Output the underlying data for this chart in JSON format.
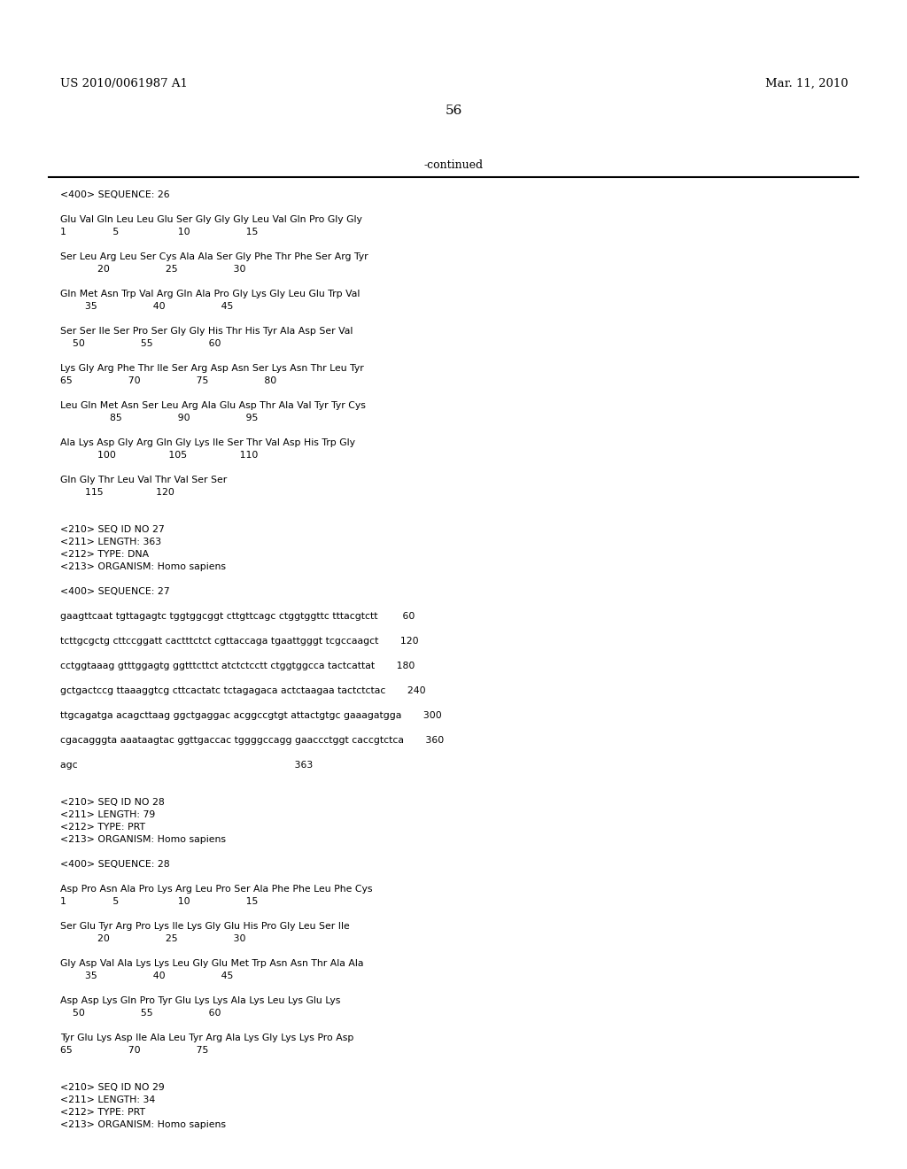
{
  "header_left": "US 2010/0061987 A1",
  "header_right": "Mar. 11, 2010",
  "page_number": "56",
  "continued_text": "-continued",
  "background_color": "#ffffff",
  "text_color": "#000000",
  "lines": [
    {
      "text": "<400> SEQUENCE: 26",
      "blank_after": false
    },
    {
      "text": "",
      "blank_after": false
    },
    {
      "text": "Glu Val Gln Leu Leu Glu Ser Gly Gly Gly Leu Val Gln Pro Gly Gly",
      "blank_after": false
    },
    {
      "text": "1               5                   10                  15",
      "blank_after": false
    },
    {
      "text": "",
      "blank_after": false
    },
    {
      "text": "Ser Leu Arg Leu Ser Cys Ala Ala Ser Gly Phe Thr Phe Ser Arg Tyr",
      "blank_after": false
    },
    {
      "text": "            20                  25                  30",
      "blank_after": false
    },
    {
      "text": "",
      "blank_after": false
    },
    {
      "text": "Gln Met Asn Trp Val Arg Gln Ala Pro Gly Lys Gly Leu Glu Trp Val",
      "blank_after": false
    },
    {
      "text": "        35                  40                  45",
      "blank_after": false
    },
    {
      "text": "",
      "blank_after": false
    },
    {
      "text": "Ser Ser Ile Ser Pro Ser Gly Gly His Thr His Tyr Ala Asp Ser Val",
      "blank_after": false
    },
    {
      "text": "    50                  55                  60",
      "blank_after": false
    },
    {
      "text": "",
      "blank_after": false
    },
    {
      "text": "Lys Gly Arg Phe Thr Ile Ser Arg Asp Asn Ser Lys Asn Thr Leu Tyr",
      "blank_after": false
    },
    {
      "text": "65                  70                  75                  80",
      "blank_after": false
    },
    {
      "text": "",
      "blank_after": false
    },
    {
      "text": "Leu Gln Met Asn Ser Leu Arg Ala Glu Asp Thr Ala Val Tyr Tyr Cys",
      "blank_after": false
    },
    {
      "text": "                85                  90                  95",
      "blank_after": false
    },
    {
      "text": "",
      "blank_after": false
    },
    {
      "text": "Ala Lys Asp Gly Arg Gln Gly Lys Ile Ser Thr Val Asp His Trp Gly",
      "blank_after": false
    },
    {
      "text": "            100                 105                 110",
      "blank_after": false
    },
    {
      "text": "",
      "blank_after": false
    },
    {
      "text": "Gln Gly Thr Leu Val Thr Val Ser Ser",
      "blank_after": false
    },
    {
      "text": "        115                 120",
      "blank_after": false
    },
    {
      "text": "",
      "blank_after": false
    },
    {
      "text": "",
      "blank_after": false
    },
    {
      "text": "<210> SEQ ID NO 27",
      "blank_after": false
    },
    {
      "text": "<211> LENGTH: 363",
      "blank_after": false
    },
    {
      "text": "<212> TYPE: DNA",
      "blank_after": false
    },
    {
      "text": "<213> ORGANISM: Homo sapiens",
      "blank_after": false
    },
    {
      "text": "",
      "blank_after": false
    },
    {
      "text": "<400> SEQUENCE: 27",
      "blank_after": false
    },
    {
      "text": "",
      "blank_after": false
    },
    {
      "text": "gaagttcaat tgttagagtc tggtggcggt cttgttcagc ctggtggttc tttacgtctt        60",
      "blank_after": false
    },
    {
      "text": "",
      "blank_after": false
    },
    {
      "text": "tcttgcgctg cttccggatt cactttctct cgttaccaga tgaattgggt tcgccaagct       120",
      "blank_after": false
    },
    {
      "text": "",
      "blank_after": false
    },
    {
      "text": "cctggtaaag gtttggagtg ggtttcttct atctctcctt ctggtggcca tactcattat       180",
      "blank_after": false
    },
    {
      "text": "",
      "blank_after": false
    },
    {
      "text": "gctgactccg ttaaaggtcg cttcactatc tctagagaca actctaagaa tactctctac       240",
      "blank_after": false
    },
    {
      "text": "",
      "blank_after": false
    },
    {
      "text": "ttgcagatga acagcttaag ggctgaggac acggccgtgt attactgtgc gaaagatgga       300",
      "blank_after": false
    },
    {
      "text": "",
      "blank_after": false
    },
    {
      "text": "cgacagggta aaataagtac ggttgaccac tggggccagg gaaccctggt caccgtctca       360",
      "blank_after": false
    },
    {
      "text": "",
      "blank_after": false
    },
    {
      "text": "agc                                                                      363",
      "blank_after": false
    },
    {
      "text": "",
      "blank_after": false
    },
    {
      "text": "",
      "blank_after": false
    },
    {
      "text": "<210> SEQ ID NO 28",
      "blank_after": false
    },
    {
      "text": "<211> LENGTH: 79",
      "blank_after": false
    },
    {
      "text": "<212> TYPE: PRT",
      "blank_after": false
    },
    {
      "text": "<213> ORGANISM: Homo sapiens",
      "blank_after": false
    },
    {
      "text": "",
      "blank_after": false
    },
    {
      "text": "<400> SEQUENCE: 28",
      "blank_after": false
    },
    {
      "text": "",
      "blank_after": false
    },
    {
      "text": "Asp Pro Asn Ala Pro Lys Arg Leu Pro Ser Ala Phe Phe Leu Phe Cys",
      "blank_after": false
    },
    {
      "text": "1               5                   10                  15",
      "blank_after": false
    },
    {
      "text": "",
      "blank_after": false
    },
    {
      "text": "Ser Glu Tyr Arg Pro Lys Ile Lys Gly Glu His Pro Gly Leu Ser Ile",
      "blank_after": false
    },
    {
      "text": "            20                  25                  30",
      "blank_after": false
    },
    {
      "text": "",
      "blank_after": false
    },
    {
      "text": "Gly Asp Val Ala Lys Lys Leu Gly Glu Met Trp Asn Asn Thr Ala Ala",
      "blank_after": false
    },
    {
      "text": "        35                  40                  45",
      "blank_after": false
    },
    {
      "text": "",
      "blank_after": false
    },
    {
      "text": "Asp Asp Lys Gln Pro Tyr Glu Lys Lys Ala Lys Leu Lys Glu Lys",
      "blank_after": false
    },
    {
      "text": "    50                  55                  60",
      "blank_after": false
    },
    {
      "text": "",
      "blank_after": false
    },
    {
      "text": "Tyr Glu Lys Asp Ile Ala Leu Tyr Arg Ala Lys Gly Lys Lys Pro Asp",
      "blank_after": false
    },
    {
      "text": "65                  70                  75",
      "blank_after": false
    },
    {
      "text": "",
      "blank_after": false
    },
    {
      "text": "",
      "blank_after": false
    },
    {
      "text": "<210> SEQ ID NO 29",
      "blank_after": false
    },
    {
      "text": "<211> LENGTH: 34",
      "blank_after": false
    },
    {
      "text": "<212> TYPE: PRT",
      "blank_after": false
    },
    {
      "text": "<213> ORGANISM: Homo sapiens",
      "blank_after": false
    }
  ]
}
